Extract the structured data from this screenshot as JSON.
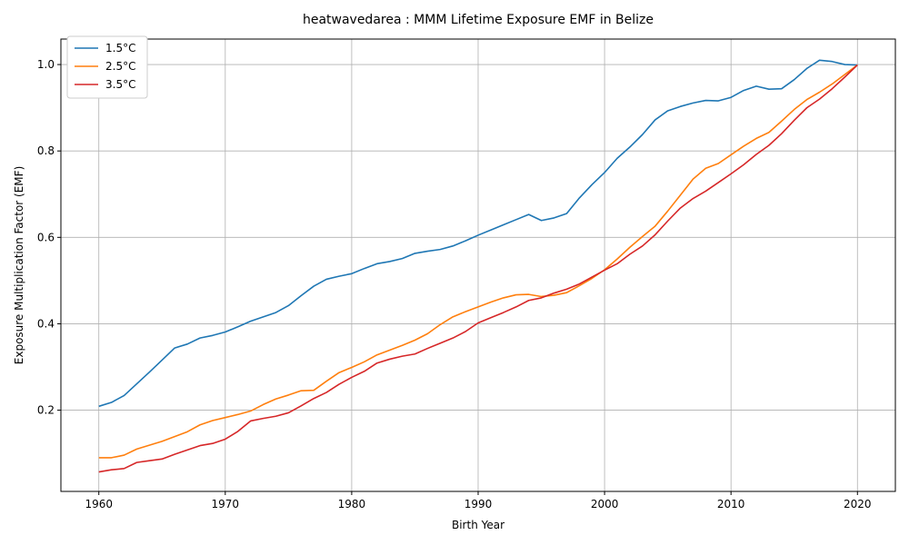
{
  "chart_data": {
    "type": "line",
    "title": "heatwavedarea : MMM Lifetime Exposure EMF in Belize",
    "xlabel": "Birth Year",
    "ylabel": "Exposure Multiplication Factor (EMF)",
    "xlim": [
      1957,
      2023
    ],
    "ylim": [
      0.012,
      1.059
    ],
    "xticks": [
      1960,
      1970,
      1980,
      1990,
      2000,
      2010,
      2020
    ],
    "yticks": [
      0.2,
      0.4,
      0.6,
      0.8,
      1.0
    ],
    "xtick_labels": [
      "1960",
      "1970",
      "1980",
      "1990",
      "2000",
      "2010",
      "2020"
    ],
    "ytick_labels": [
      "0.2",
      "0.4",
      "0.6",
      "0.8",
      "1.0"
    ],
    "grid": true,
    "legend_position": "top-left",
    "x": [
      1960,
      1961,
      1962,
      1963,
      1964,
      1965,
      1966,
      1967,
      1968,
      1969,
      1970,
      1971,
      1972,
      1973,
      1974,
      1975,
      1976,
      1977,
      1978,
      1979,
      1980,
      1981,
      1982,
      1983,
      1984,
      1985,
      1986,
      1987,
      1988,
      1989,
      1990,
      1991,
      1992,
      1993,
      1994,
      1995,
      1996,
      1997,
      1998,
      1999,
      2000,
      2001,
      2002,
      2003,
      2004,
      2005,
      2006,
      2007,
      2008,
      2009,
      2010,
      2011,
      2012,
      2013,
      2014,
      2015,
      2016,
      2017,
      2018,
      2019,
      2020
    ],
    "series": [
      {
        "name": "1.5°C",
        "color": "#1f77b4",
        "values": [
          0.209,
          0.218,
          0.234,
          0.261,
          0.288,
          0.316,
          0.344,
          0.353,
          0.367,
          0.373,
          0.381,
          0.393,
          0.406,
          0.416,
          0.426,
          0.442,
          0.465,
          0.487,
          0.503,
          0.51,
          0.516,
          0.528,
          0.539,
          0.544,
          0.551,
          0.563,
          0.568,
          0.572,
          0.58,
          0.592,
          0.605,
          0.617,
          0.629,
          0.641,
          0.653,
          0.639,
          0.645,
          0.655,
          0.691,
          0.722,
          0.75,
          0.783,
          0.809,
          0.838,
          0.872,
          0.893,
          0.903,
          0.911,
          0.917,
          0.916,
          0.924,
          0.94,
          0.95,
          0.943,
          0.944,
          0.965,
          0.991,
          1.01,
          1.007,
          1.0,
          0.999
        ]
      },
      {
        "name": "2.5°C",
        "color": "#ff7f0e",
        "values": [
          0.09,
          0.09,
          0.096,
          0.11,
          0.119,
          0.128,
          0.139,
          0.15,
          0.166,
          0.176,
          0.183,
          0.19,
          0.198,
          0.213,
          0.226,
          0.235,
          0.245,
          0.246,
          0.267,
          0.287,
          0.299,
          0.312,
          0.328,
          0.339,
          0.35,
          0.362,
          0.377,
          0.398,
          0.416,
          0.428,
          0.439,
          0.45,
          0.46,
          0.467,
          0.468,
          0.463,
          0.466,
          0.472,
          0.488,
          0.505,
          0.525,
          0.55,
          0.577,
          0.602,
          0.626,
          0.661,
          0.698,
          0.735,
          0.76,
          0.771,
          0.791,
          0.811,
          0.829,
          0.843,
          0.869,
          0.896,
          0.919,
          0.936,
          0.955,
          0.977,
          0.999
        ]
      },
      {
        "name": "3.5°C",
        "color": "#d62728",
        "values": [
          0.057,
          0.062,
          0.065,
          0.079,
          0.083,
          0.087,
          0.098,
          0.108,
          0.118,
          0.123,
          0.133,
          0.151,
          0.175,
          0.181,
          0.186,
          0.194,
          0.21,
          0.227,
          0.241,
          0.26,
          0.276,
          0.29,
          0.309,
          0.318,
          0.325,
          0.33,
          0.343,
          0.355,
          0.367,
          0.382,
          0.402,
          0.414,
          0.426,
          0.439,
          0.454,
          0.46,
          0.471,
          0.48,
          0.492,
          0.508,
          0.524,
          0.539,
          0.561,
          0.58,
          0.606,
          0.638,
          0.668,
          0.69,
          0.707,
          0.727,
          0.747,
          0.768,
          0.792,
          0.813,
          0.84,
          0.871,
          0.9,
          0.92,
          0.944,
          0.971,
          0.999
        ]
      }
    ]
  }
}
